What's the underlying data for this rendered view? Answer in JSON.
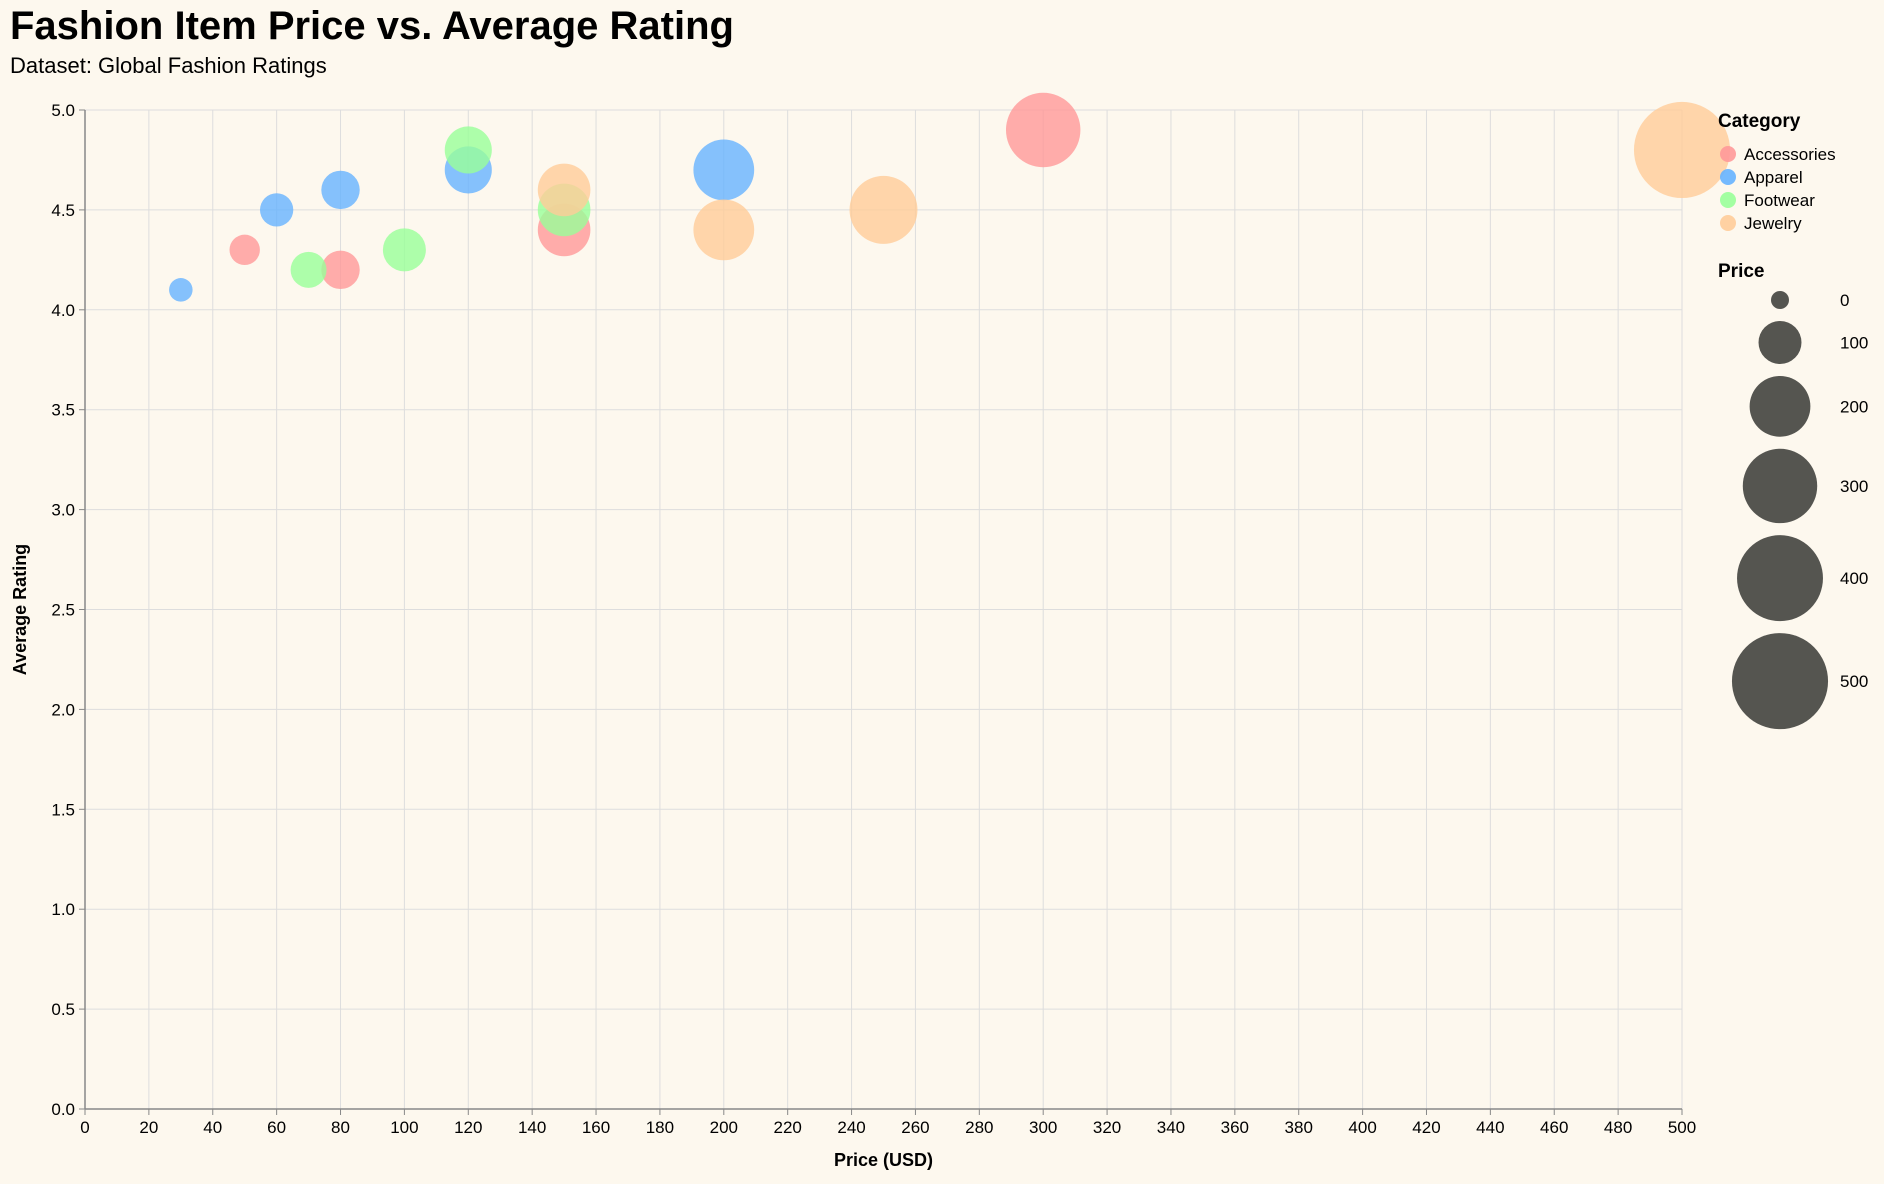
{
  "title": "Fashion Item Price vs. Average Rating",
  "subtitle": "Dataset: Global Fashion Ratings",
  "colors": {
    "Accessories": "#ff9999",
    "Apparel": "#66b3ff",
    "Footwear": "#99ff99",
    "Jewelry": "#ffcc99",
    "grid": "#dddddd",
    "axis": "#888888",
    "size_legend": "#555550",
    "background": "#fdf8ee"
  },
  "chart_data": {
    "type": "scatter",
    "title": "Fashion Item Price vs. Average Rating",
    "subtitle": "Dataset: Global Fashion Ratings",
    "xlabel": "Price (USD)",
    "ylabel": "Average Rating",
    "xlim": [
      0,
      500
    ],
    "ylim": [
      0,
      5
    ],
    "x_ticks": [
      0,
      20,
      40,
      60,
      80,
      100,
      120,
      140,
      160,
      180,
      200,
      220,
      240,
      260,
      280,
      300,
      320,
      340,
      360,
      380,
      400,
      420,
      440,
      460,
      480,
      500
    ],
    "y_ticks": [
      "0.0",
      "0.5",
      "1.0",
      "1.5",
      "2.0",
      "2.5",
      "3.0",
      "3.5",
      "4.0",
      "4.5",
      "5.0"
    ],
    "grid": true,
    "size_encoding": "Price",
    "legend": {
      "position": "right",
      "color_title": "Category",
      "categories": [
        "Accessories",
        "Apparel",
        "Footwear",
        "Jewelry"
      ],
      "size_title": "Price",
      "size_values": [
        0,
        100,
        200,
        300,
        400,
        500
      ]
    },
    "series": [
      {
        "name": "Accessories",
        "points": [
          {
            "x": 50,
            "y": 4.3
          },
          {
            "x": 80,
            "y": 4.2
          },
          {
            "x": 150,
            "y": 4.4
          },
          {
            "x": 300,
            "y": 4.9
          }
        ]
      },
      {
        "name": "Apparel",
        "points": [
          {
            "x": 30,
            "y": 4.1
          },
          {
            "x": 60,
            "y": 4.5
          },
          {
            "x": 80,
            "y": 4.6
          },
          {
            "x": 120,
            "y": 4.7
          },
          {
            "x": 200,
            "y": 4.7
          }
        ]
      },
      {
        "name": "Footwear",
        "points": [
          {
            "x": 70,
            "y": 4.2
          },
          {
            "x": 100,
            "y": 4.3
          },
          {
            "x": 120,
            "y": 4.8
          },
          {
            "x": 150,
            "y": 4.5
          }
        ]
      },
      {
        "name": "Jewelry",
        "points": [
          {
            "x": 150,
            "y": 4.6
          },
          {
            "x": 200,
            "y": 4.4
          },
          {
            "x": 250,
            "y": 4.5
          },
          {
            "x": 500,
            "y": 4.8
          }
        ]
      }
    ]
  }
}
